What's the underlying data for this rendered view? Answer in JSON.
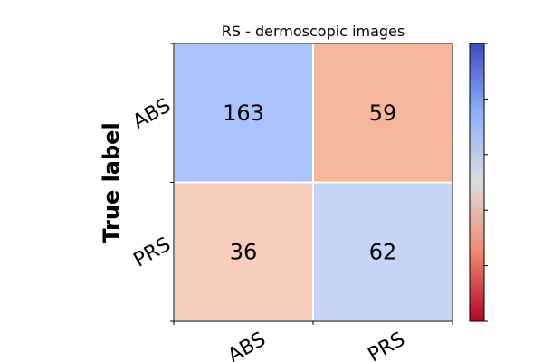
{
  "chart_data": {
    "type": "heatmap",
    "title": "RS - dermoscopic images",
    "ylabel": "True label",
    "xlabel": "",
    "x_categories": [
      "ABS",
      "PRS"
    ],
    "y_categories": [
      "ABS",
      "PRS"
    ],
    "values": [
      [
        163,
        59
      ],
      [
        36,
        62
      ]
    ],
    "colormap": "coolwarm_r",
    "colorbar": true
  },
  "colors": {
    "cell_0_0": "#a9c4fd",
    "cell_0_1": "#f6b69b",
    "cell_1_0": "#f7cdbb",
    "cell_1_1": "#c4d5f5",
    "grid_line": "#ffffff"
  }
}
